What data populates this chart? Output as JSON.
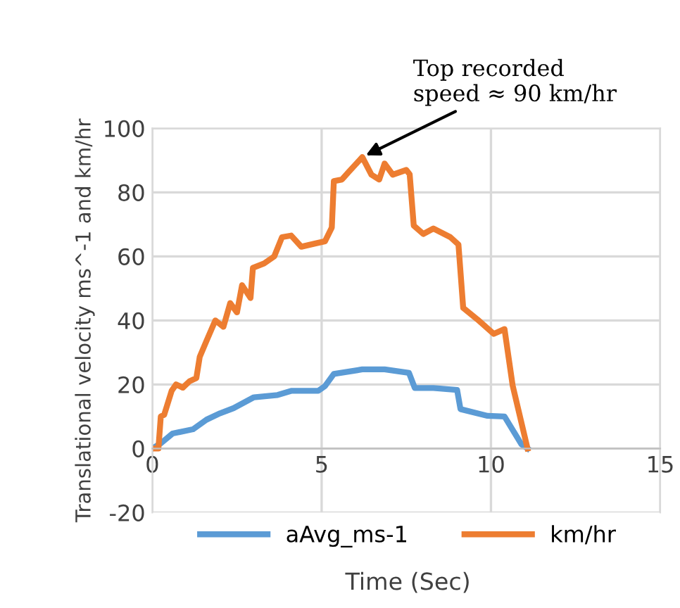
{
  "chart_data": {
    "type": "line",
    "xlabel": "Time (Sec)",
    "ylabel": "Translational velocity ms^-1 and km/hr",
    "xlim": [
      0,
      15
    ],
    "xticks": [
      0,
      5,
      10,
      15
    ],
    "ylim": [
      -20,
      100
    ],
    "yticks": [
      -20,
      0,
      20,
      40,
      60,
      80,
      100
    ],
    "grid": true,
    "legend": "bottom",
    "marker": "none",
    "line_style": "solid",
    "annotations": [
      {
        "text": "Top recorded\nspeed ≈ 90 km/hr",
        "x": 6.2,
        "y": 91
      }
    ],
    "series": [
      {
        "name": "aAvg_ms-1",
        "color": "#5b9bd5",
        "x": [
          0,
          0.26,
          0.6,
          1.2,
          1.6,
          2.0,
          2.4,
          3.0,
          3.7,
          4.1,
          4.9,
          5.1,
          5.36,
          6.2,
          6.86,
          7.58,
          7.75,
          8.3,
          9.0,
          9.1,
          9.9,
          10.4,
          10.9,
          11.08
        ],
        "values": [
          0,
          1.7,
          4.7,
          6,
          9,
          11,
          12.6,
          16,
          16.7,
          18,
          18,
          19.5,
          23.3,
          24.7,
          24.7,
          23.6,
          18.9,
          18.9,
          18.3,
          12.3,
          10.2,
          10,
          1.3,
          0
        ]
      },
      {
        "name": "km/hr",
        "color": "#ed7d31",
        "x": [
          0,
          0.18,
          0.25,
          0.35,
          0.57,
          0.7,
          0.9,
          1.1,
          1.3,
          1.4,
          1.6,
          1.86,
          2.1,
          2.3,
          2.5,
          2.65,
          2.9,
          2.97,
          3.3,
          3.6,
          3.83,
          4.1,
          4.4,
          4.8,
          5.1,
          5.3,
          5.36,
          5.6,
          5.8,
          6.2,
          6.47,
          6.7,
          6.86,
          7.1,
          7.5,
          7.6,
          7.72,
          8.0,
          8.3,
          8.8,
          9.04,
          9.18,
          9.6,
          10.08,
          10.4,
          10.64,
          11.08
        ],
        "values": [
          0,
          0,
          10,
          10.5,
          18,
          20,
          19,
          21,
          22,
          28.6,
          33.6,
          40,
          38,
          45.4,
          42.5,
          51,
          47,
          56.4,
          57.8,
          60,
          66,
          66.5,
          63,
          64,
          64.7,
          69,
          83.5,
          84,
          86.4,
          91,
          85.5,
          84,
          89,
          85.5,
          87,
          85.6,
          69.6,
          67,
          68.7,
          66,
          63.7,
          43.9,
          40.3,
          35.8,
          37.3,
          19.7,
          0
        ]
      }
    ]
  }
}
